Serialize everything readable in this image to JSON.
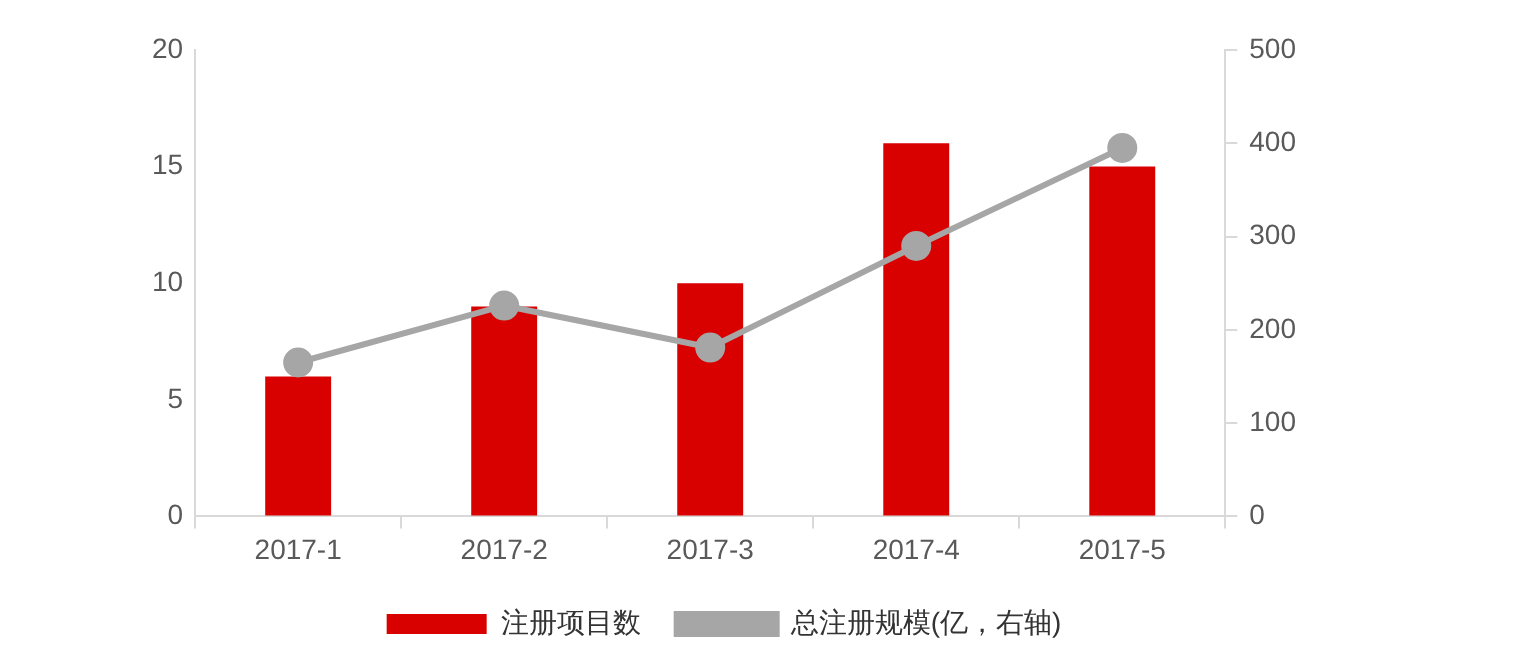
{
  "chart_data": {
    "type": "bar",
    "categories": [
      "2017-1",
      "2017-2",
      "2017-3",
      "2017-4",
      "2017-5"
    ],
    "series": [
      {
        "name": "注册项目数",
        "color": "#d90000",
        "values": [
          6,
          9,
          10,
          16,
          15
        ]
      },
      {
        "name": "总注册规模(亿，右轴)",
        "type": "line",
        "axis": "y2",
        "color": "#a6a6a6",
        "marker": "circle",
        "values": [
          165,
          226,
          181,
          290,
          395
        ]
      }
    ],
    "ylim": [
      0,
      20
    ],
    "yticks": [
      0,
      5,
      10,
      15,
      20
    ],
    "y2lim": [
      0,
      500
    ],
    "y2ticks": [
      0,
      100,
      200,
      300,
      400,
      500
    ],
    "grid": false,
    "legend": "bottom"
  }
}
